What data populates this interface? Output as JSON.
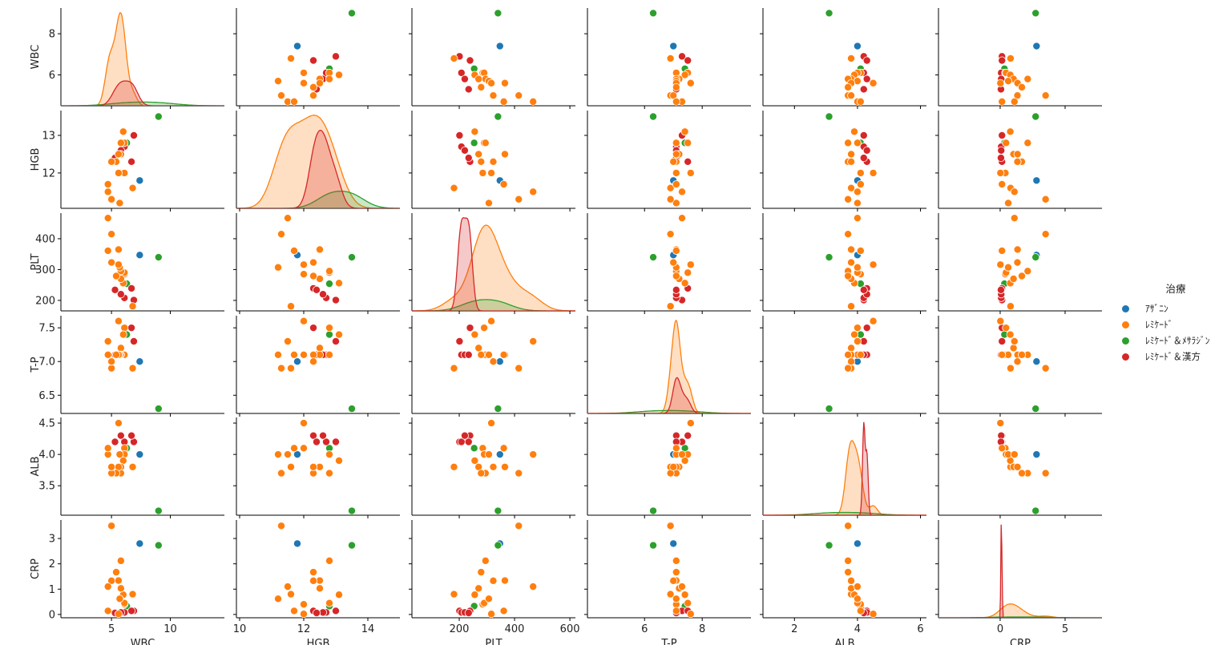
{
  "chart_data": {
    "type": "scatter",
    "subtype": "pairplot",
    "hue_title": "治療",
    "hue_levels": [
      "ｱｻﾞﾆﾝ",
      "ﾚﾐｹｰﾄﾞ",
      "ﾚﾐｹｰﾄﾞ＆ﾒｻﾗｼﾞﾝ",
      "ﾚﾐｹｰﾄﾞ＆漢方"
    ],
    "hue_colors": [
      "#1f77b4",
      "#ff7f0e",
      "#2ca02c",
      "#d62728"
    ],
    "legend_position": "right",
    "diagonal": "kde",
    "grid": false,
    "variables": [
      {
        "name": "WBC",
        "xlim": [
          0.7,
          14.6
        ],
        "ylim": [
          4.5,
          9.25
        ],
        "ticks": [
          5,
          10
        ],
        "yticks": [
          6,
          8
        ],
        "ticklabels": [
          "5",
          "10"
        ],
        "yticklabels": [
          "6",
          "8"
        ]
      },
      {
        "name": "HGB",
        "xlim": [
          9.9,
          15.0
        ],
        "ylim": [
          11.06,
          13.66
        ],
        "ticks": [
          10,
          12,
          14
        ],
        "yticks": [
          12,
          13
        ],
        "ticklabels": [
          "10",
          "12",
          "14"
        ],
        "yticklabels": [
          "12",
          "13"
        ]
      },
      {
        "name": "PLT",
        "xlim": [
          29,
          620
        ],
        "ylim": [
          166,
          483
        ],
        "ticks": [
          200,
          400,
          600
        ],
        "yticks": [
          200,
          300,
          400
        ],
        "ticklabels": [
          "200",
          "400",
          "600"
        ],
        "yticklabels": [
          "200",
          "300",
          "400"
        ]
      },
      {
        "name": "T-P",
        "xlim": [
          4.02,
          9.69
        ],
        "ylim": [
          6.23,
          7.68
        ],
        "ticks": [
          6,
          8
        ],
        "yticks": [
          6.5,
          7.0,
          7.5
        ],
        "ticklabels": [
          "6",
          "8"
        ],
        "yticklabels": [
          "6.5",
          "7.0",
          "7.5"
        ]
      },
      {
        "name": "ALB",
        "xlim": [
          1.0,
          6.19
        ],
        "ylim": [
          3.03,
          4.59
        ],
        "ticks": [
          2,
          4,
          6
        ],
        "yticks": [
          3.5,
          4.0,
          4.5
        ],
        "ticklabels": [
          "2",
          "4",
          "6"
        ],
        "yticklabels": [
          "3.5",
          "4.0",
          "4.5"
        ]
      },
      {
        "name": "CRP",
        "xlim": [
          -4.75,
          7.84
        ],
        "ylim": [
          -0.13,
          3.73
        ],
        "ticks": [
          0,
          5
        ],
        "yticks": [
          0,
          1,
          2,
          3
        ],
        "ticklabels": [
          "0",
          "5"
        ],
        "yticklabels": [
          "0",
          "1",
          "2",
          "3"
        ]
      }
    ],
    "columns": [
      "治療",
      "WBC",
      "HGB",
      "PLT",
      "T-P",
      "ALB",
      "CRP"
    ],
    "rows": [
      [
        "ｱｻﾞﾆﾝ",
        7.4,
        11.8,
        347,
        7.0,
        4.0,
        2.8
      ],
      [
        "ﾚﾐｹｰﾄﾞ＆ﾒｻﾗｼﾞﾝ",
        9.0,
        13.5,
        340,
        6.3,
        3.1,
        2.73
      ],
      [
        "ﾚﾐｹｰﾄﾞ＆ﾒｻﾗｼﾞﾝ",
        6.3,
        12.8,
        254,
        7.4,
        4.1,
        0.33
      ],
      [
        "ﾚﾐｹｰﾄﾞ＆漢方",
        6.9,
        13.0,
        201,
        7.3,
        4.2,
        0.14
      ],
      [
        "ﾚﾐｹｰﾄﾞ＆漢方",
        6.7,
        12.3,
        239,
        7.5,
        4.3,
        0.14
      ],
      [
        "ﾚﾐｹｰﾄﾞ＆漢方",
        6.1,
        12.7,
        208,
        7.1,
        4.2,
        0.08
      ],
      [
        "ﾚﾐｹｰﾄﾞ＆漢方",
        5.8,
        12.6,
        220,
        7.1,
        4.3,
        0.08
      ],
      [
        "ﾚﾐｹｰﾄﾞ＆漢方",
        5.3,
        12.4,
        234,
        7.1,
        4.2,
        0.06
      ],
      [
        "ﾚﾐｹｰﾄﾞ",
        6.8,
        11.6,
        181,
        6.9,
        3.8,
        0.8
      ],
      [
        "ﾚﾐｹｰﾄﾞ",
        6.1,
        12.0,
        285,
        7.1,
        4.1,
        0.4
      ],
      [
        "ﾚﾐｹｰﾄﾞ",
        6.1,
        12.8,
        290,
        7.5,
        4.0,
        0.45
      ],
      [
        "ﾚﾐｹｰﾄﾞ",
        6.0,
        13.1,
        256,
        7.4,
        3.9,
        0.78
      ],
      [
        "ﾚﾐｹｰﾄﾞ",
        5.8,
        12.5,
        270,
        7.2,
        3.8,
        1.03
      ],
      [
        "ﾚﾐｹｰﾄﾞ",
        5.8,
        12.8,
        295,
        7.1,
        3.7,
        2.12
      ],
      [
        "ﾚﾐｹｰﾄﾞ",
        5.7,
        11.2,
        307,
        7.1,
        4.0,
        0.62
      ],
      [
        "ﾚﾐｹｰﾄﾞ",
        5.6,
        12.0,
        316,
        7.6,
        4.5,
        0.02
      ],
      [
        "ﾚﾐｹｰﾄﾞ",
        5.6,
        12.5,
        365,
        7.1,
        3.8,
        1.34
      ],
      [
        "ﾚﾐｹｰﾄﾞ",
        5.4,
        12.3,
        279,
        7.1,
        3.7,
        1.67
      ],
      [
        "ﾚﾐｹｰﾄﾞ",
        5.0,
        11.3,
        415,
        6.9,
        3.7,
        3.5
      ],
      [
        "ﾚﾐｹｰﾄﾞ",
        5.0,
        12.3,
        323,
        7.0,
        3.8,
        1.33
      ],
      [
        "ﾚﾐｹｰﾄﾞ",
        4.7,
        11.5,
        467,
        7.3,
        4.0,
        1.1
      ],
      [
        "ﾚﾐｹｰﾄﾞ",
        4.7,
        11.7,
        361,
        7.1,
        4.1,
        0.14
      ]
    ]
  },
  "legend": {
    "title": "治療",
    "items": [
      {
        "label": "ｱｻﾞﾆﾝ",
        "color": "#1f77b4"
      },
      {
        "label": "ﾚﾐｹｰﾄﾞ",
        "color": "#ff7f0e"
      },
      {
        "label": "ﾚﾐｹｰﾄﾞ＆ﾒｻﾗｼﾞﾝ",
        "color": "#2ca02c"
      },
      {
        "label": "ﾚﾐｹｰﾄﾞ＆漢方",
        "color": "#d62728"
      }
    ]
  }
}
